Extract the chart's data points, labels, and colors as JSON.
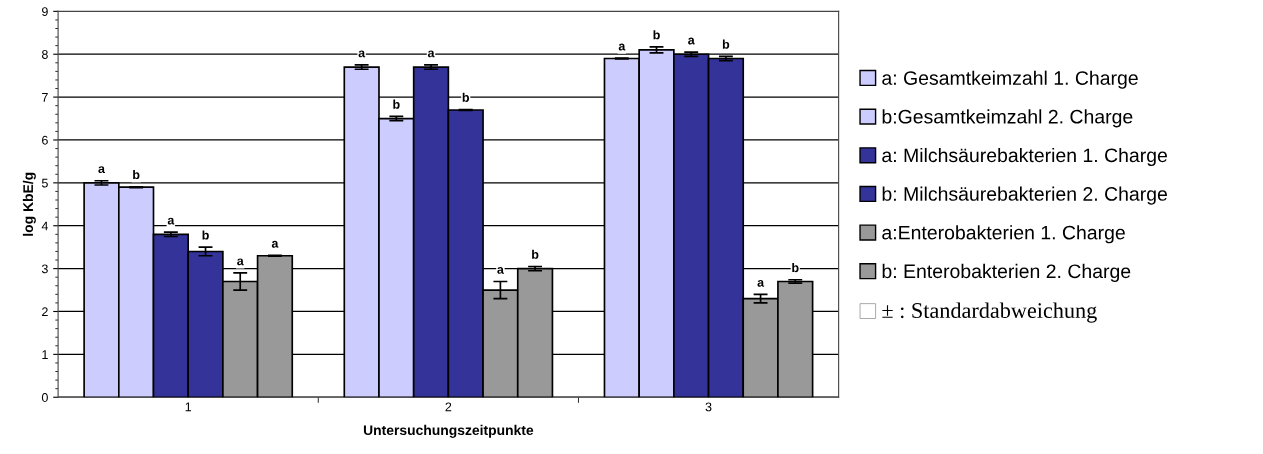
{
  "chart_data": {
    "type": "bar",
    "xlabel": "Untersuchungszeitpunkte",
    "ylabel": "log KbE/g",
    "categories": [
      "1",
      "2",
      "3"
    ],
    "series": [
      {
        "name": "a: Gesamtkeimzahl 1. Charge",
        "color": "#ccccff",
        "values": [
          5.0,
          7.7,
          7.9
        ],
        "errors": [
          0.05,
          0.05,
          0.01
        ],
        "value_labels": [
          "a",
          "a",
          "a"
        ]
      },
      {
        "name": "b:Gesamtkeimzahl 2. Charge",
        "color": "#ccccff",
        "values": [
          4.9,
          6.5,
          8.1
        ],
        "errors": [
          0.01,
          0.05,
          0.07
        ],
        "value_labels": [
          "b",
          "b",
          "b"
        ]
      },
      {
        "name": "a: Milchsäurebakterien 1. Charge",
        "color": "#333399",
        "values": [
          3.8,
          7.7,
          8.0
        ],
        "errors": [
          0.05,
          0.05,
          0.05
        ],
        "value_labels": [
          "a",
          "a",
          "a"
        ]
      },
      {
        "name": "b: Milchsäurebakterien 2. Charge",
        "color": "#333399",
        "values": [
          3.4,
          6.7,
          7.9
        ],
        "errors": [
          0.1,
          0.01,
          0.05
        ],
        "value_labels": [
          "b",
          "b",
          "b"
        ]
      },
      {
        "name": "a:Enterobakterien 1. Charge",
        "color": "#999999",
        "values": [
          2.7,
          2.5,
          2.3
        ],
        "errors": [
          0.2,
          0.2,
          0.1
        ],
        "value_labels": [
          "a",
          "a",
          "a"
        ]
      },
      {
        "name": "b: Enterobakterien 2. Charge",
        "color": "#999999",
        "values": [
          3.3,
          3.0,
          2.7
        ],
        "errors": [
          0.01,
          0.05,
          0.04
        ],
        "value_labels": [
          "a",
          "b",
          "b"
        ]
      }
    ],
    "annotations": [
      "± : Standardabweichung"
    ],
    "ylim": [
      0,
      9
    ],
    "yticks": [
      0,
      1,
      2,
      3,
      4,
      5,
      6,
      7,
      8,
      9
    ],
    "grid": "y",
    "legend": "right"
  }
}
